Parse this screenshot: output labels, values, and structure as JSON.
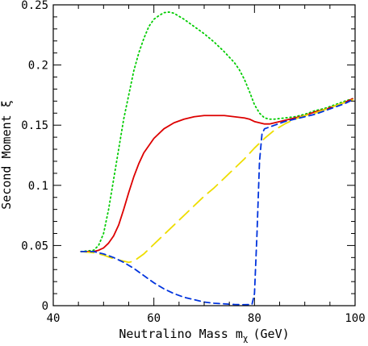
{
  "chart_data": {
    "type": "line",
    "title": "",
    "xlabel": "Neutralino Mass m",
    "xlabel_sub": "χ",
    "xlabel_unit": "(GeV)",
    "ylabel": "Second Moment ξ",
    "xlim": [
      40,
      100
    ],
    "ylim": [
      0,
      0.25
    ],
    "xticks": [
      40,
      60,
      80,
      100
    ],
    "xtick_labels": [
      "40",
      "60",
      "80",
      "100"
    ],
    "yticks": [
      0,
      0.05,
      0.1,
      0.15,
      0.2,
      0.25
    ],
    "ytick_labels": [
      "0",
      "0.05",
      "0.1",
      "0.15",
      "0.2",
      "0.25"
    ],
    "grid": false,
    "legend": "none",
    "series": [
      {
        "color": "#00cc00",
        "dash": "dotted",
        "x": [
          45.5,
          48,
          49,
          50,
          51,
          52,
          53,
          54,
          55,
          56,
          57,
          58,
          59,
          60,
          61,
          62,
          63,
          64,
          66,
          68,
          70,
          72,
          74,
          76,
          77,
          78,
          79,
          80,
          81,
          82,
          83,
          84,
          86,
          88,
          90,
          92,
          94,
          96,
          98,
          99.5
        ],
        "y": [
          0.045,
          0.046,
          0.05,
          0.06,
          0.08,
          0.105,
          0.13,
          0.155,
          0.175,
          0.195,
          0.21,
          0.222,
          0.232,
          0.238,
          0.241,
          0.2435,
          0.244,
          0.243,
          0.238,
          0.232,
          0.226,
          0.219,
          0.211,
          0.202,
          0.196,
          0.188,
          0.178,
          0.167,
          0.16,
          0.156,
          0.155,
          0.155,
          0.156,
          0.157,
          0.159,
          0.162,
          0.164,
          0.167,
          0.17,
          0.172
        ]
      },
      {
        "color": "#dd0000",
        "dash": "solid",
        "x": [
          45.5,
          48,
          49,
          50,
          51,
          52,
          53,
          54,
          55,
          56,
          57,
          58,
          60,
          62,
          64,
          66,
          68,
          70,
          72,
          74,
          76,
          78,
          79,
          80,
          81,
          82,
          83,
          84,
          86,
          88,
          90,
          92,
          94,
          96,
          98,
          99.5
        ],
        "y": [
          0.045,
          0.045,
          0.046,
          0.048,
          0.052,
          0.058,
          0.067,
          0.08,
          0.094,
          0.107,
          0.118,
          0.127,
          0.139,
          0.147,
          0.152,
          0.155,
          0.157,
          0.158,
          0.158,
          0.158,
          0.157,
          0.156,
          0.155,
          0.153,
          0.152,
          0.151,
          0.151,
          0.152,
          0.154,
          0.156,
          0.158,
          0.161,
          0.163,
          0.166,
          0.169,
          0.172
        ]
      },
      {
        "color": "#eedd00",
        "dash": "long-dash",
        "x": [
          45.5,
          48,
          50,
          52,
          54,
          55,
          56,
          58,
          60,
          62,
          64,
          66,
          68,
          70,
          72,
          74,
          76,
          78,
          80,
          82,
          84,
          86,
          88,
          90,
          92,
          94,
          96,
          98,
          99.5
        ],
        "y": [
          0.045,
          0.044,
          0.042,
          0.039,
          0.037,
          0.036,
          0.037,
          0.043,
          0.051,
          0.059,
          0.067,
          0.075,
          0.083,
          0.091,
          0.098,
          0.106,
          0.114,
          0.122,
          0.131,
          0.139,
          0.146,
          0.151,
          0.155,
          0.158,
          0.16,
          0.163,
          0.166,
          0.169,
          0.171
        ]
      },
      {
        "color": "#0033dd",
        "dash": "dashed",
        "x": [
          45.5,
          48,
          50,
          52,
          54,
          56,
          58,
          60,
          62,
          64,
          66,
          68,
          70,
          72,
          74,
          76,
          78,
          79.5,
          80,
          80.5,
          81,
          81.5,
          82,
          84,
          86,
          88,
          90,
          92,
          94,
          96,
          98,
          99.5
        ],
        "y": [
          0.045,
          0.045,
          0.043,
          0.04,
          0.036,
          0.031,
          0.025,
          0.019,
          0.014,
          0.01,
          0.007,
          0.005,
          0.003,
          0.002,
          0.0015,
          0.001,
          0.0008,
          0.001,
          0.01,
          0.06,
          0.12,
          0.143,
          0.147,
          0.15,
          0.153,
          0.155,
          0.157,
          0.159,
          0.162,
          0.165,
          0.168,
          0.171
        ]
      }
    ]
  }
}
